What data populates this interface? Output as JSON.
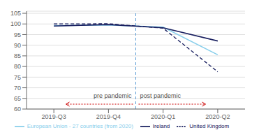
{
  "chart_data": {
    "type": "line",
    "categories": [
      "2019-Q3",
      "2019-Q4",
      "2020-Q1",
      "2020-Q2"
    ],
    "series": [
      {
        "name": "European Union - 27 countries (from 2020)",
        "color": "#87CEEB",
        "line_style": "solid",
        "values": [
          99.2,
          99.5,
          98.5,
          85.5
        ]
      },
      {
        "name": "Ireland",
        "color": "#1a2060",
        "line_style": "solid",
        "values": [
          99.0,
          99.7,
          98.2,
          92.0
        ]
      },
      {
        "name": "United Kingdom",
        "color": "#1a2060",
        "line_style": "dashed",
        "values": [
          100.0,
          100.1,
          98.0,
          77.5
        ]
      }
    ],
    "ylim": [
      60,
      106
    ],
    "yticks": [
      60,
      65,
      70,
      75,
      80,
      85,
      90,
      95,
      100,
      105
    ],
    "grid": true,
    "legend": "bottom",
    "annotations": [
      "pre pandemic",
      "post pandemic"
    ]
  }
}
